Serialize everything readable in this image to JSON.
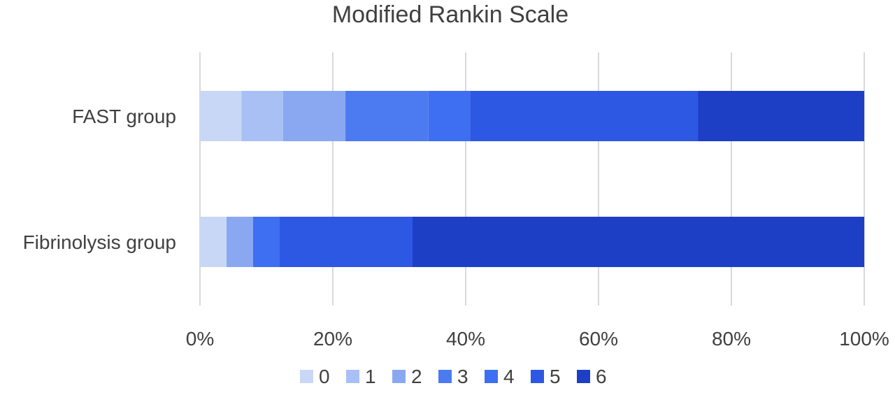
{
  "chart_data": {
    "type": "bar",
    "orientation": "horizontal",
    "stacked": "percent",
    "title": "Modified Rankin Scale",
    "xlabel": "",
    "ylabel": "",
    "categories": [
      "FAST group",
      "Fibrinolysis group"
    ],
    "xlim": [
      0,
      100
    ],
    "x_ticks": [
      "0%",
      "20%",
      "40%",
      "60%",
      "80%",
      "100%"
    ],
    "grid": true,
    "legend_position": "bottom",
    "series": [
      {
        "name": "0",
        "color": "#c9d7f7",
        "values": [
          6.25,
          4
        ]
      },
      {
        "name": "1",
        "color": "#a9c0f5",
        "values": [
          6.25,
          0
        ]
      },
      {
        "name": "2",
        "color": "#8aa8f2",
        "values": [
          9.4,
          4
        ]
      },
      {
        "name": "3",
        "color": "#4c7af0",
        "values": [
          12.5,
          0
        ]
      },
      {
        "name": "4",
        "color": "#3e6ef2",
        "values": [
          6.25,
          4
        ]
      },
      {
        "name": "5",
        "color": "#2d58e3",
        "values": [
          34.35,
          20
        ]
      },
      {
        "name": "6",
        "color": "#1c3fc6",
        "values": [
          25,
          68
        ]
      }
    ]
  }
}
